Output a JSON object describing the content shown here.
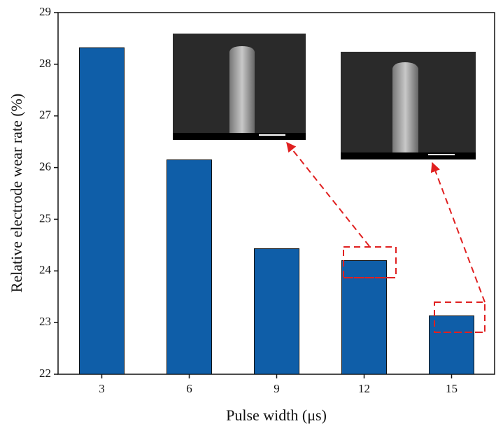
{
  "chart_data": {
    "type": "bar",
    "x_label": "Pulse width (μs)",
    "y_label": "Relative electrode wear rate (%)",
    "categories": [
      "3",
      "6",
      "9",
      "12",
      "15"
    ],
    "values": [
      28.32,
      26.15,
      24.43,
      24.2,
      23.13
    ],
    "color": "#0f5ea8",
    "ylim": [
      22,
      29
    ],
    "yticks": [
      22,
      23,
      24,
      25,
      26,
      27,
      28,
      29
    ]
  }
}
